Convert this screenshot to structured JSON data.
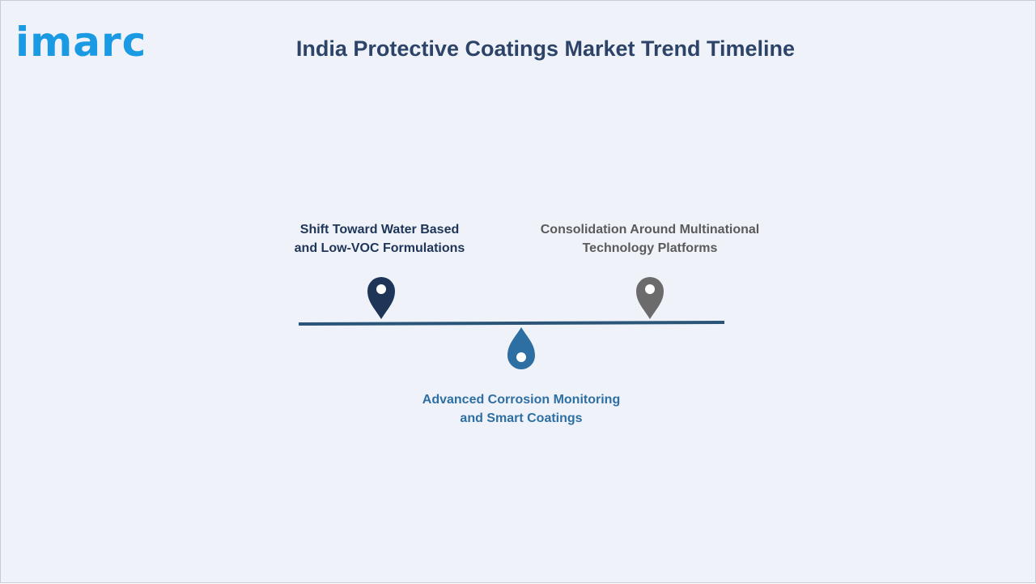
{
  "brand": {
    "logo_text": "imarc",
    "accent_color": "#1b9ae4"
  },
  "header": {
    "title": "India Protective Coatings Market Trend Timeline"
  },
  "timeline": {
    "line_color": "#2a5578",
    "milestones": [
      {
        "line1": "Shift Toward Water Based",
        "line2": "and Low-VOC Formulations",
        "position": "above",
        "color": "#1f3558",
        "icon": "map-pin-icon"
      },
      {
        "line1": "Advanced Corrosion Monitoring",
        "line2": "and Smart Coatings",
        "position": "below",
        "color": "#2e6fa3",
        "icon": "map-pin-icon"
      },
      {
        "line1": "Consolidation Around Multinational",
        "line2": "Technology Platforms",
        "position": "above",
        "color": "#6b6b6b",
        "icon": "map-pin-icon"
      }
    ]
  }
}
